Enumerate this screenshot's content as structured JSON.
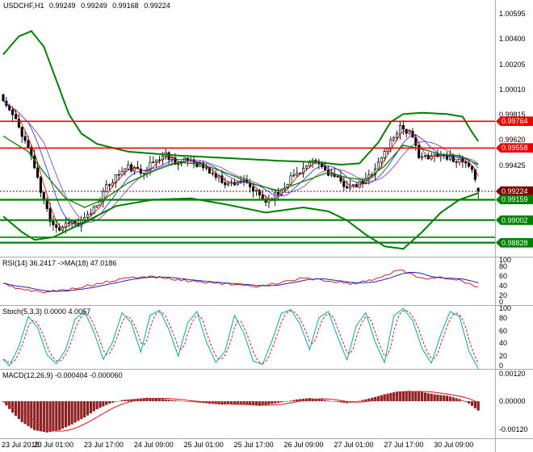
{
  "chart": {
    "title": {
      "symbol_timeframe": "USDCHF,H1",
      "open": "0.99249",
      "high": "0.99249",
      "low": "0.99168",
      "close": "0.99224"
    }
  },
  "panels": {
    "rsi": {
      "title": "RSI(14) 36.2417 ->MA(18) 47.0186",
      "axis": [
        "100",
        "80",
        "60",
        "40",
        "20",
        "0"
      ]
    },
    "stoch": {
      "title": "Stoch(5,3,3) 0.0000 4.0057",
      "axis": [
        "100",
        "80",
        "60",
        "40",
        "20",
        "0"
      ]
    },
    "macd": {
      "title": "MACD(12,26,9) -0.000404 -0.000060",
      "axis": [
        {
          "text": "0.00120",
          "value": 0.0012
        },
        {
          "text": "0.00000",
          "value": 0.0
        },
        {
          "text": "-0.00120",
          "value": -0.0012
        }
      ]
    }
  },
  "main_axis": {
    "labels": [
      {
        "text": "1.00595",
        "price": 1.00595
      },
      {
        "text": "1.00400",
        "price": 1.004
      },
      {
        "text": "1.00205",
        "price": 1.00205
      },
      {
        "text": "1.00010",
        "price": 1.0001
      },
      {
        "text": "0.99815",
        "price": 0.99815
      },
      {
        "text": "0.99620",
        "price": 0.9962
      },
      {
        "text": "0.99425",
        "price": 0.99425
      }
    ]
  },
  "time_axis": {
    "labels": [
      "23 Jul 2018",
      "23 Jul 01:00",
      "23 Jul 17:00",
      "24 Jul 09:00",
      "25 Jul 01:00",
      "25 Jul 17:00",
      "26 Jul 09:00",
      "27 Jul 01:00",
      "27 Jul 17:00",
      "30 Jul 09:00"
    ]
  },
  "colors": {
    "background": "#FFFFFF",
    "axis_text": "#000000",
    "separator": "#ABABAB",
    "candle_up": "#FFFFFF",
    "candle_down": "#000000",
    "candle_border": "#000000",
    "band_green": "#008000",
    "ma_fast": "#CC0000",
    "ma_mid": "#2222CC",
    "ma_slow": "#8833AA",
    "level_red": "#EE0000",
    "level_green": "#008000",
    "bid_line": "#8B0000",
    "bid_label_bg": "#7A0000",
    "red_label_bg": "#EE0000",
    "green_label_bg": "#008000",
    "rsi_line": "#CC2222",
    "rsi_ma": "#2222BB",
    "stoch_k": "#00AAAA",
    "stoch_d": "#CC2222",
    "macd_hist": "#8B2222",
    "macd_signal": "#DD2222"
  },
  "chart_data": [
    {
      "type": "candlestick",
      "symbol": "USDCHF",
      "timeframe": "H1",
      "bars": 153,
      "price_range": {
        "top": 1.007,
        "bottom": 0.9872
      },
      "last_bar": {
        "open": 0.99249,
        "high": 0.99249,
        "low": 0.99168,
        "close": 0.99224
      },
      "bid": {
        "price": 0.99224,
        "label": "0.99224"
      },
      "close_anchors": [
        [
          0,
          0.9992
        ],
        [
          3,
          0.9981
        ],
        [
          6,
          0.9967
        ],
        [
          9,
          0.995
        ],
        [
          12,
          0.9922
        ],
        [
          15,
          0.9901
        ],
        [
          18,
          0.9893
        ],
        [
          21,
          0.99
        ],
        [
          24,
          0.9896
        ],
        [
          27,
          0.9903
        ],
        [
          30,
          0.9913
        ],
        [
          33,
          0.9925
        ],
        [
          36,
          0.9934
        ],
        [
          40,
          0.9941
        ],
        [
          44,
          0.9937
        ],
        [
          48,
          0.9945
        ],
        [
          52,
          0.9951
        ],
        [
          56,
          0.9944
        ],
        [
          60,
          0.9947
        ],
        [
          64,
          0.9941
        ],
        [
          68,
          0.9934
        ],
        [
          72,
          0.9928
        ],
        [
          76,
          0.9931
        ],
        [
          80,
          0.9923
        ],
        [
          84,
          0.9915
        ],
        [
          88,
          0.9921
        ],
        [
          92,
          0.9933
        ],
        [
          96,
          0.994
        ],
        [
          100,
          0.9945
        ],
        [
          104,
          0.9937
        ],
        [
          108,
          0.9929
        ],
        [
          112,
          0.9925
        ],
        [
          116,
          0.9931
        ],
        [
          120,
          0.9944
        ],
        [
          124,
          0.9961
        ],
        [
          127,
          0.9973
        ],
        [
          130,
          0.9967
        ],
        [
          133,
          0.9951
        ],
        [
          136,
          0.9947
        ],
        [
          139,
          0.9952
        ],
        [
          142,
          0.9949
        ],
        [
          145,
          0.9947
        ],
        [
          148,
          0.9943
        ],
        [
          150,
          0.9937
        ],
        [
          151,
          0.9929
        ],
        [
          152,
          0.99224
        ]
      ],
      "upper_band_anchors": [
        [
          0,
          1.0028
        ],
        [
          5,
          1.0042
        ],
        [
          9,
          1.0046
        ],
        [
          13,
          1.0034
        ],
        [
          17,
          1.0008
        ],
        [
          21,
          0.9982
        ],
        [
          25,
          0.9967
        ],
        [
          30,
          0.9959
        ],
        [
          40,
          0.9953
        ],
        [
          56,
          0.995
        ],
        [
          72,
          0.9948
        ],
        [
          88,
          0.9946
        ],
        [
          100,
          0.9945
        ],
        [
          108,
          0.9943
        ],
        [
          114,
          0.9944
        ],
        [
          120,
          0.996
        ],
        [
          124,
          0.9976
        ],
        [
          128,
          0.9982
        ],
        [
          134,
          0.9983
        ],
        [
          142,
          0.9982
        ],
        [
          147,
          0.998
        ],
        [
          150,
          0.9968
        ],
        [
          152,
          0.9961
        ]
      ],
      "middle_band_anchors": [
        [
          0,
          0.9965
        ],
        [
          8,
          0.9953
        ],
        [
          14,
          0.9934
        ],
        [
          20,
          0.9917
        ],
        [
          26,
          0.991
        ],
        [
          32,
          0.9916
        ],
        [
          40,
          0.9929
        ],
        [
          48,
          0.9938
        ],
        [
          56,
          0.9945
        ],
        [
          64,
          0.9943
        ],
        [
          72,
          0.9936
        ],
        [
          80,
          0.9928
        ],
        [
          88,
          0.9923
        ],
        [
          96,
          0.993
        ],
        [
          104,
          0.9937
        ],
        [
          110,
          0.9933
        ],
        [
          116,
          0.9931
        ],
        [
          122,
          0.9942
        ],
        [
          128,
          0.9958
        ],
        [
          134,
          0.9955
        ],
        [
          140,
          0.9951
        ],
        [
          146,
          0.995
        ],
        [
          152,
          0.9943
        ]
      ],
      "lower_band_anchors": [
        [
          0,
          0.9903
        ],
        [
          6,
          0.9891
        ],
        [
          10,
          0.9885
        ],
        [
          16,
          0.9887
        ],
        [
          22,
          0.9894
        ],
        [
          28,
          0.9901
        ],
        [
          36,
          0.9911
        ],
        [
          48,
          0.9916
        ],
        [
          60,
          0.9917
        ],
        [
          72,
          0.9912
        ],
        [
          84,
          0.9906
        ],
        [
          96,
          0.991
        ],
        [
          104,
          0.9907
        ],
        [
          110,
          0.99
        ],
        [
          116,
          0.9889
        ],
        [
          122,
          0.988
        ],
        [
          128,
          0.9878
        ],
        [
          134,
          0.9891
        ],
        [
          140,
          0.9906
        ],
        [
          146,
          0.9916
        ],
        [
          152,
          0.9921
        ]
      ],
      "horizontal_lines": {
        "red": [
          {
            "price": 0.99764,
            "label": "0.99764"
          },
          {
            "price": 0.99558,
            "label": "0.99558"
          }
        ],
        "green": [
          {
            "price": 0.99159,
            "label": "0.99159"
          },
          {
            "price": 0.99002,
            "label": "0.99002"
          },
          {
            "price": 0.9887
          },
          {
            "price": 0.98828,
            "label": "0.98828"
          }
        ]
      }
    },
    {
      "type": "line",
      "name": "RSI",
      "params": "14",
      "value": 36.2417,
      "ma_value": 47.0186,
      "range": [
        0,
        100
      ],
      "anchors": [
        [
          0,
          44
        ],
        [
          6,
          32
        ],
        [
          12,
          27
        ],
        [
          18,
          30
        ],
        [
          24,
          36
        ],
        [
          32,
          46
        ],
        [
          40,
          56
        ],
        [
          48,
          59
        ],
        [
          56,
          52
        ],
        [
          64,
          48
        ],
        [
          72,
          43
        ],
        [
          80,
          38
        ],
        [
          88,
          46
        ],
        [
          96,
          56
        ],
        [
          104,
          50
        ],
        [
          112,
          44
        ],
        [
          120,
          56
        ],
        [
          127,
          73
        ],
        [
          132,
          61
        ],
        [
          136,
          53
        ],
        [
          140,
          57
        ],
        [
          144,
          55
        ],
        [
          148,
          47
        ],
        [
          152,
          36
        ]
      ]
    },
    {
      "type": "line",
      "name": "Stochastic",
      "params": "5,3,3",
      "k_value": 0.0,
      "d_value": 4.0057,
      "range": [
        0,
        100
      ],
      "k_anchors": [
        [
          0,
          15
        ],
        [
          2,
          5
        ],
        [
          5,
          35
        ],
        [
          8,
          82
        ],
        [
          11,
          65
        ],
        [
          14,
          22
        ],
        [
          17,
          8
        ],
        [
          20,
          30
        ],
        [
          23,
          78
        ],
        [
          26,
          90
        ],
        [
          29,
          58
        ],
        [
          32,
          15
        ],
        [
          35,
          42
        ],
        [
          38,
          88
        ],
        [
          41,
          72
        ],
        [
          44,
          26
        ],
        [
          47,
          84
        ],
        [
          50,
          92
        ],
        [
          53,
          62
        ],
        [
          56,
          20
        ],
        [
          59,
          72
        ],
        [
          62,
          90
        ],
        [
          65,
          42
        ],
        [
          68,
          10
        ],
        [
          71,
          28
        ],
        [
          74,
          84
        ],
        [
          77,
          56
        ],
        [
          80,
          12
        ],
        [
          83,
          7
        ],
        [
          86,
          44
        ],
        [
          89,
          87
        ],
        [
          92,
          93
        ],
        [
          95,
          70
        ],
        [
          98,
          30
        ],
        [
          101,
          80
        ],
        [
          104,
          90
        ],
        [
          107,
          50
        ],
        [
          110,
          14
        ],
        [
          113,
          68
        ],
        [
          116,
          88
        ],
        [
          119,
          42
        ],
        [
          122,
          10
        ],
        [
          125,
          83
        ],
        [
          128,
          95
        ],
        [
          131,
          76
        ],
        [
          134,
          32
        ],
        [
          137,
          9
        ],
        [
          140,
          54
        ],
        [
          143,
          90
        ],
        [
          146,
          82
        ],
        [
          149,
          28
        ],
        [
          152,
          0
        ]
      ]
    },
    {
      "type": "macd",
      "params": "12,26,9",
      "macd_value": -0.000404,
      "signal_value": -6e-05,
      "range": {
        "top": 0.0014,
        "bottom": -0.0016
      },
      "anchors": [
        [
          0,
          -2e-05
        ],
        [
          3,
          -0.0005
        ],
        [
          6,
          -0.0009
        ],
        [
          10,
          -0.00125
        ],
        [
          14,
          -0.00135
        ],
        [
          18,
          -0.00125
        ],
        [
          22,
          -0.001
        ],
        [
          26,
          -0.0007
        ],
        [
          30,
          -0.00035
        ],
        [
          34,
          -0.0001
        ],
        [
          38,
          5e-05
        ],
        [
          42,
          0.0001
        ],
        [
          46,
          0.00015
        ],
        [
          50,
          0.00012
        ],
        [
          54,
          5e-05
        ],
        [
          58,
          0.0
        ],
        [
          62,
          -5e-05
        ],
        [
          66,
          -0.0001
        ],
        [
          70,
          -0.00015
        ],
        [
          74,
          -0.00012
        ],
        [
          78,
          -0.00016
        ],
        [
          82,
          -0.0002
        ],
        [
          86,
          -0.00012
        ],
        [
          90,
          -2e-05
        ],
        [
          94,
          8e-05
        ],
        [
          98,
          0.00014
        ],
        [
          102,
          8e-05
        ],
        [
          106,
          -2e-05
        ],
        [
          110,
          -8e-05
        ],
        [
          114,
          2e-05
        ],
        [
          118,
          0.00015
        ],
        [
          122,
          0.0003
        ],
        [
          126,
          0.00042
        ],
        [
          130,
          0.00045
        ],
        [
          134,
          0.0004
        ],
        [
          138,
          0.0003
        ],
        [
          142,
          0.00024
        ],
        [
          146,
          0.0001
        ],
        [
          149,
          -0.0001
        ],
        [
          152,
          -0.000404
        ]
      ]
    }
  ]
}
